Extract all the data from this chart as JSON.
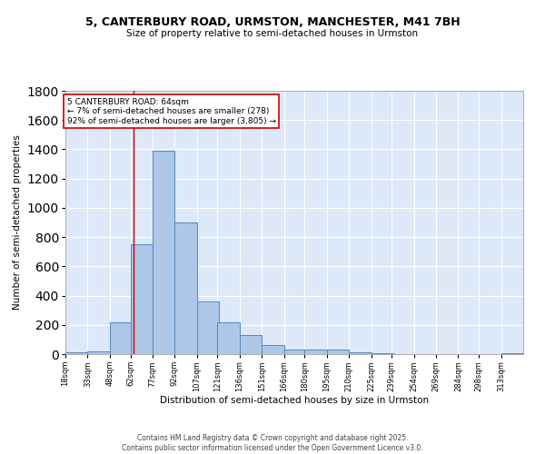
{
  "title_line1": "5, CANTERBURY ROAD, URMSTON, MANCHESTER, M41 7BH",
  "title_line2": "Size of property relative to semi-detached houses in Urmston",
  "xlabel": "Distribution of semi-detached houses by size in Urmston",
  "ylabel": "Number of semi-detached properties",
  "bin_labels": [
    "18sqm",
    "33sqm",
    "48sqm",
    "62sqm",
    "77sqm",
    "92sqm",
    "107sqm",
    "121sqm",
    "136sqm",
    "151sqm",
    "166sqm",
    "180sqm",
    "195sqm",
    "210sqm",
    "225sqm",
    "239sqm",
    "254sqm",
    "269sqm",
    "284sqm",
    "298sqm",
    "313sqm"
  ],
  "bar_values": [
    10,
    20,
    220,
    750,
    1390,
    900,
    360,
    220,
    130,
    60,
    30,
    30,
    30,
    15,
    5,
    3,
    2,
    1,
    1,
    0,
    5
  ],
  "bar_color": "#aec6e8",
  "bar_edge_color": "#5588bb",
  "bg_color": "#dde8f8",
  "grid_color": "#ffffff",
  "annotation_text": "5 CANTERBURY ROAD: 64sqm\n← 7% of semi-detached houses are smaller (278)\n92% of semi-detached houses are larger (3,805) →",
  "annotation_box_color": "#ffffff",
  "annotation_box_edge_color": "#cc0000",
  "vline_x": 64,
  "vline_color": "#cc0000",
  "ylim": [
    0,
    1800
  ],
  "bin_edges": [
    18,
    33,
    48,
    62,
    77,
    92,
    107,
    121,
    136,
    151,
    166,
    180,
    195,
    210,
    225,
    239,
    254,
    269,
    284,
    298,
    313
  ],
  "footer_line1": "Contains HM Land Registry data © Crown copyright and database right 2025.",
  "footer_line2": "Contains public sector information licensed under the Open Government Licence v3.0."
}
